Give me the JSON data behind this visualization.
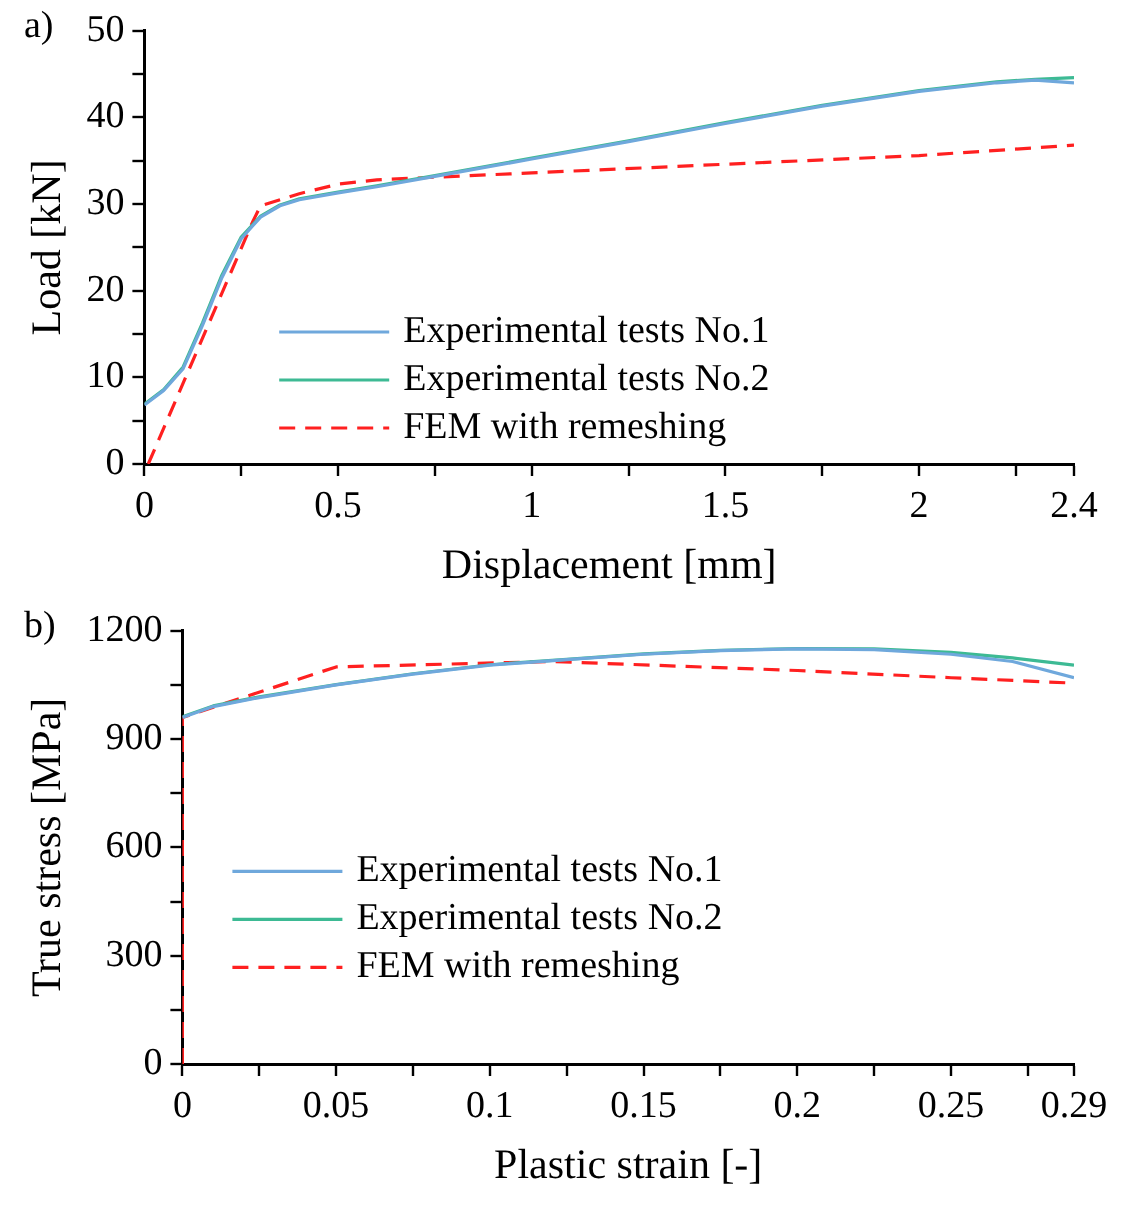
{
  "chart_data": [
    {
      "type": "line",
      "title": "a)",
      "xlabel": "Displacement [mm]",
      "ylabel": "Load [kN]",
      "legend": "bottom",
      "grid": false,
      "marker": "none",
      "xlim": [
        0,
        2.4
      ],
      "xticks": [
        0,
        {
          "value": 0.25,
          "label": null
        },
        0.5,
        {
          "value": 0.75,
          "label": null
        },
        1,
        {
          "value": 1.25,
          "label": null
        },
        1.5,
        {
          "value": 1.75,
          "label": null
        },
        2,
        {
          "value": 2.25,
          "label": null
        },
        2.4
      ],
      "ylim": [
        0,
        50
      ],
      "yticks": [
        0,
        {
          "value": 5,
          "label": null
        },
        10,
        {
          "value": 15,
          "label": null
        },
        20,
        {
          "value": 25,
          "label": null
        },
        30,
        {
          "value": 35,
          "label": null
        },
        40,
        {
          "value": 45,
          "label": null
        },
        50
      ],
      "series": [
        {
          "name": "Experimental tests No.1",
          "color": "#6fa8dc",
          "line_style": "solid",
          "x": [
            0,
            0.05,
            0.1,
            0.15,
            0.2,
            0.25,
            0.3,
            0.35,
            0.4,
            0.5,
            0.6,
            0.75,
            1,
            1.25,
            1.5,
            1.75,
            2,
            2.2,
            2.3,
            2.4
          ],
          "values": [
            6.8,
            8.5,
            11,
            16,
            21.5,
            26,
            28.5,
            29.8,
            30.5,
            31.3,
            32,
            33.2,
            35.2,
            37.2,
            39.3,
            41.3,
            43,
            44,
            44.3,
            44
          ]
        },
        {
          "name": "Experimental tests No.2",
          "color": "#3dba94",
          "line_style": "solid",
          "x": [
            0,
            0.05,
            0.1,
            0.15,
            0.2,
            0.25,
            0.3,
            0.35,
            0.4,
            0.5,
            0.6,
            0.75,
            1,
            1.25,
            1.5,
            1.75,
            2,
            2.2,
            2.3,
            2.4
          ],
          "values": [
            6.9,
            8.6,
            11.2,
            16.3,
            21.8,
            26.2,
            28.6,
            29.9,
            30.6,
            31.4,
            32.1,
            33.3,
            35.3,
            37.3,
            39.4,
            41.4,
            43.1,
            44.1,
            44.4,
            44.6
          ]
        },
        {
          "name": "FEM with remeshing",
          "color": "#ff2020",
          "line_style": "dashed",
          "x": [
            0.01,
            0.28,
            0.3,
            0.4,
            0.5,
            0.6,
            0.8,
            1,
            1.5,
            2,
            2.4
          ],
          "values": [
            0,
            28,
            29.8,
            31.2,
            32.3,
            32.8,
            33.2,
            33.6,
            34.6,
            35.6,
            36.8
          ]
        }
      ]
    },
    {
      "type": "line",
      "title": "b)",
      "xlabel": "Plastic strain [-]",
      "ylabel": "True stress [MPa]",
      "legend": "left",
      "grid": false,
      "marker": "none",
      "xlim": [
        0,
        0.29
      ],
      "xticks": [
        0,
        {
          "value": 0.025,
          "label": null
        },
        0.05,
        {
          "value": 0.075,
          "label": null
        },
        0.1,
        {
          "value": 0.125,
          "label": null
        },
        0.15,
        {
          "value": 0.175,
          "label": null
        },
        0.2,
        {
          "value": 0.225,
          "label": null
        },
        0.25,
        {
          "value": 0.275,
          "label": null
        },
        0.29
      ],
      "ylim": [
        0,
        1200
      ],
      "yticks": [
        0,
        {
          "value": 150,
          "label": null
        },
        300,
        {
          "value": 450,
          "label": null
        },
        600,
        {
          "value": 750,
          "label": null
        },
        900,
        {
          "value": 1050,
          "label": null
        },
        1200
      ],
      "series": [
        {
          "name": "Experimental tests No.1",
          "color": "#6fa8dc",
          "line_style": "solid",
          "x": [
            0,
            0.01,
            0.025,
            0.05,
            0.075,
            0.1,
            0.125,
            0.15,
            0.175,
            0.2,
            0.225,
            0.25,
            0.27,
            0.29
          ],
          "values": [
            960,
            990,
            1015,
            1050,
            1080,
            1105,
            1120,
            1135,
            1145,
            1150,
            1148,
            1135,
            1115,
            1070
          ]
        },
        {
          "name": "Experimental tests No.2",
          "color": "#3dba94",
          "line_style": "solid",
          "x": [
            0,
            0.01,
            0.025,
            0.05,
            0.075,
            0.1,
            0.125,
            0.15,
            0.175,
            0.2,
            0.225,
            0.25,
            0.27,
            0.29
          ],
          "values": [
            962,
            992,
            1017,
            1051,
            1081,
            1106,
            1121,
            1136,
            1146,
            1151,
            1150,
            1140,
            1125,
            1105
          ]
        },
        {
          "name": "FEM with remeshing",
          "color": "#ff2020",
          "line_style": "dashed",
          "x": [
            0,
            0,
            0.05,
            0.12,
            0.2,
            0.25,
            0.29
          ],
          "values": [
            0,
            960,
            1100,
            1115,
            1090,
            1070,
            1055
          ]
        }
      ]
    }
  ]
}
